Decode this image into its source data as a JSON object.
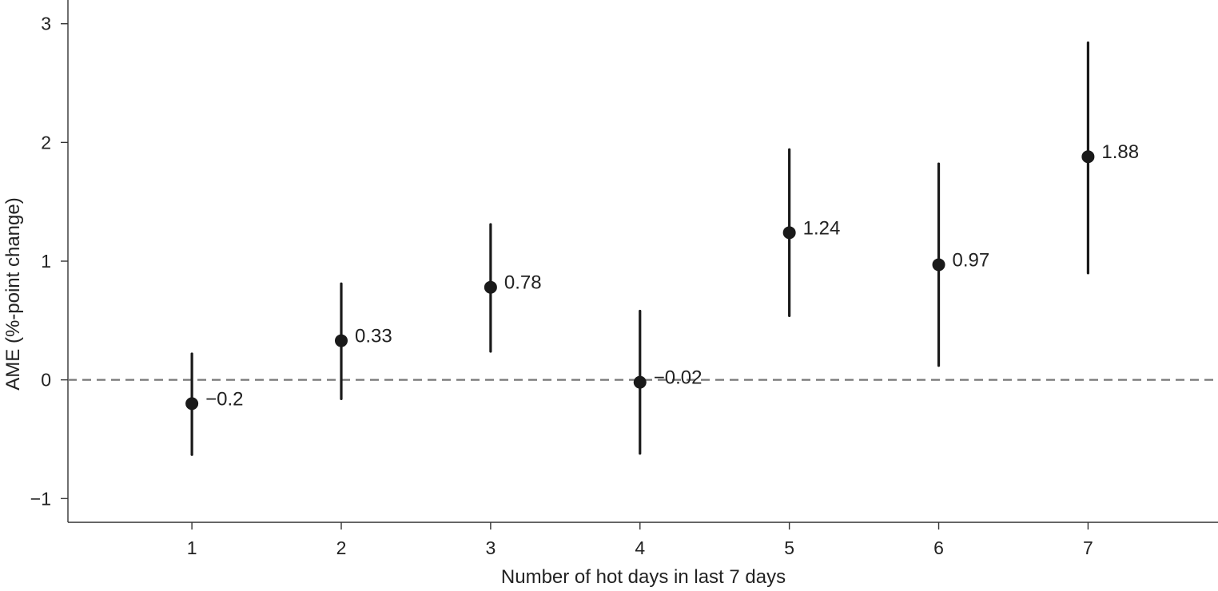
{
  "chart_data": {
    "type": "scatter",
    "title": "",
    "xlabel": "Number of hot days in last 7 days",
    "ylabel": "AME (%-point change)",
    "x": [
      1,
      2,
      3,
      4,
      5,
      6,
      7
    ],
    "x_tick_labels": [
      "1",
      "2",
      "3",
      "4",
      "5",
      "6",
      "7"
    ],
    "y_ticks": [
      -1,
      0,
      1,
      2,
      3
    ],
    "y_tick_labels": [
      "−1",
      "0",
      "1",
      "2",
      "3"
    ],
    "xlim": [
      0.17,
      7.87
    ],
    "ylim": [
      -1.2,
      3.2
    ],
    "series": [
      {
        "values": [
          -0.2,
          0.33,
          0.78,
          -0.02,
          1.24,
          0.97,
          1.88
        ],
        "lower": [
          -0.63,
          -0.16,
          0.24,
          -0.62,
          0.54,
          0.12,
          0.9
        ],
        "upper": [
          0.22,
          0.81,
          1.31,
          0.58,
          1.94,
          1.82,
          2.84
        ],
        "labels": [
          "−0.2",
          "0.33",
          "0.78",
          "−0.02",
          "1.24",
          "0.97",
          "1.88"
        ]
      }
    ],
    "reference_line": {
      "y": 0,
      "style": "dashed",
      "color": "#777777"
    },
    "marker_color": "#1a1a1a",
    "grid": false,
    "legend": "none"
  }
}
